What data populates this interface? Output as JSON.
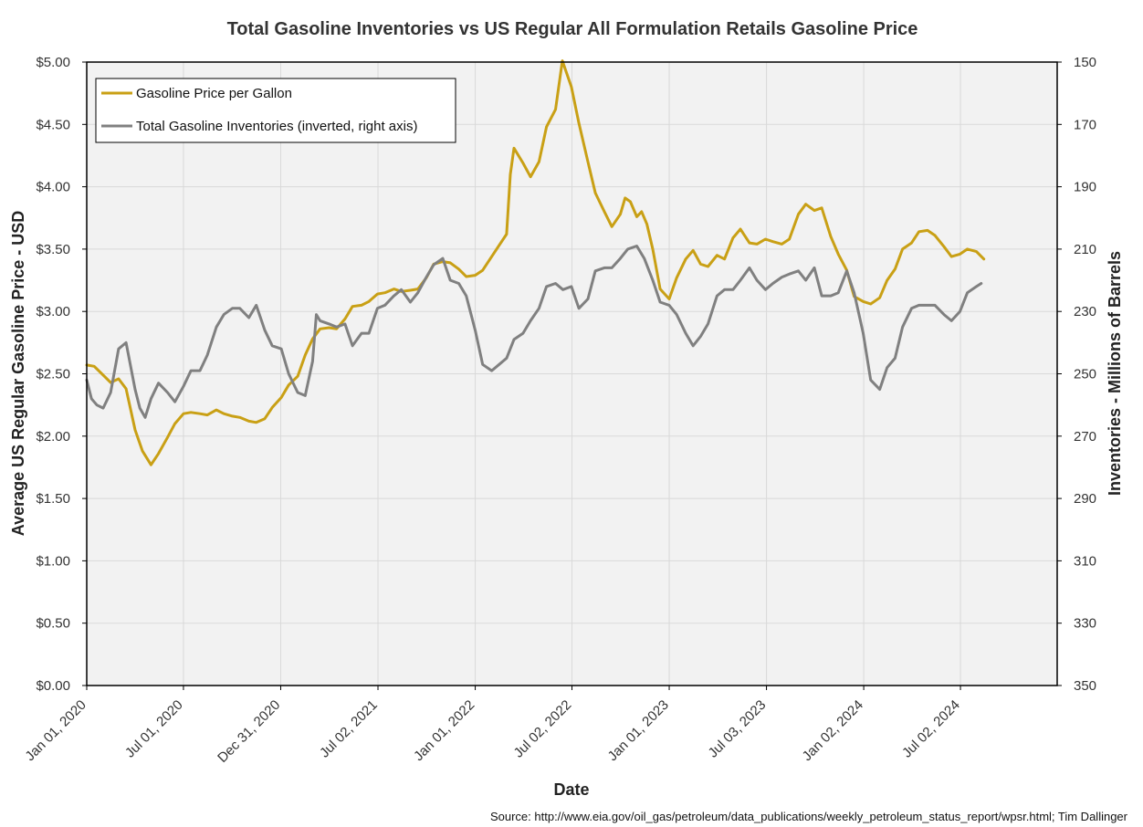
{
  "chart_data": {
    "type": "line",
    "title": "Total Gasoline Inventories vs US Regular All Formulation Retails Gasoline Price",
    "xlabel": "Date",
    "ylabel_left": "Average US Regular Gasoline Price - USD",
    "ylabel_right": "Inventories - Millions of Barrels",
    "source": "Source: http://www.eia.gov/oil_gas/petroleum/data_publications/weekly_petroleum_status_report/wpsr.html; Tim Dallinger",
    "x_range": [
      "2020-01-01",
      "2024-12-31"
    ],
    "x_ticks": [
      {
        "date": "2020-01-01",
        "label": "Jan 01, 2020"
      },
      {
        "date": "2020-07-01",
        "label": "Jul 01, 2020"
      },
      {
        "date": "2020-12-31",
        "label": "Dec 31, 2020"
      },
      {
        "date": "2021-07-02",
        "label": "Jul 02, 2021"
      },
      {
        "date": "2022-01-01",
        "label": "Jan 01, 2022"
      },
      {
        "date": "2022-07-02",
        "label": "Jul 02, 2022"
      },
      {
        "date": "2023-01-01",
        "label": "Jan 01, 2023"
      },
      {
        "date": "2023-07-03",
        "label": "Jul 03, 2023"
      },
      {
        "date": "2024-01-02",
        "label": "Jan 02, 2024"
      },
      {
        "date": "2024-07-02",
        "label": "Jul 02, 2024"
      }
    ],
    "y_left": {
      "min": 0,
      "max": 5,
      "step": 0.5,
      "tick_labels": [
        "$0.00",
        "$0.50",
        "$1.00",
        "$1.50",
        "$2.00",
        "$2.50",
        "$3.00",
        "$3.50",
        "$4.00",
        "$4.50",
        "$5.00"
      ]
    },
    "y_right": {
      "min": 150,
      "max": 350,
      "step": 20,
      "inverted": true,
      "tick_labels": [
        "150",
        "170",
        "190",
        "210",
        "230",
        "250",
        "270",
        "290",
        "310",
        "330",
        "350"
      ]
    },
    "grid": true,
    "legend_position": "top-left",
    "series": [
      {
        "name": "Gasoline Price per Gallon",
        "axis": "left",
        "color": "#C9A015",
        "points": [
          [
            "2020-01-01",
            2.57
          ],
          [
            "2020-01-15",
            2.56
          ],
          [
            "2020-02-01",
            2.49
          ],
          [
            "2020-02-15",
            2.43
          ],
          [
            "2020-03-01",
            2.46
          ],
          [
            "2020-03-15",
            2.38
          ],
          [
            "2020-04-01",
            2.05
          ],
          [
            "2020-04-15",
            1.88
          ],
          [
            "2020-05-01",
            1.77
          ],
          [
            "2020-05-15",
            1.86
          ],
          [
            "2020-06-01",
            1.99
          ],
          [
            "2020-06-15",
            2.1
          ],
          [
            "2020-07-01",
            2.18
          ],
          [
            "2020-07-15",
            2.19
          ],
          [
            "2020-08-01",
            2.18
          ],
          [
            "2020-08-15",
            2.17
          ],
          [
            "2020-09-01",
            2.21
          ],
          [
            "2020-09-15",
            2.18
          ],
          [
            "2020-10-01",
            2.16
          ],
          [
            "2020-10-15",
            2.15
          ],
          [
            "2020-11-01",
            2.12
          ],
          [
            "2020-11-15",
            2.11
          ],
          [
            "2020-12-01",
            2.14
          ],
          [
            "2020-12-15",
            2.23
          ],
          [
            "2021-01-01",
            2.31
          ],
          [
            "2021-01-15",
            2.41
          ],
          [
            "2021-02-01",
            2.48
          ],
          [
            "2021-02-15",
            2.65
          ],
          [
            "2021-03-01",
            2.78
          ],
          [
            "2021-03-15",
            2.86
          ],
          [
            "2021-04-01",
            2.87
          ],
          [
            "2021-04-15",
            2.86
          ],
          [
            "2021-05-01",
            2.94
          ],
          [
            "2021-05-15",
            3.04
          ],
          [
            "2021-06-01",
            3.05
          ],
          [
            "2021-06-15",
            3.08
          ],
          [
            "2021-07-01",
            3.14
          ],
          [
            "2021-07-15",
            3.15
          ],
          [
            "2021-08-01",
            3.18
          ],
          [
            "2021-08-15",
            3.16
          ],
          [
            "2021-09-01",
            3.17
          ],
          [
            "2021-09-15",
            3.18
          ],
          [
            "2021-10-01",
            3.27
          ],
          [
            "2021-10-15",
            3.38
          ],
          [
            "2021-11-01",
            3.4
          ],
          [
            "2021-11-15",
            3.39
          ],
          [
            "2021-12-01",
            3.34
          ],
          [
            "2021-12-15",
            3.28
          ],
          [
            "2022-01-01",
            3.29
          ],
          [
            "2022-01-15",
            3.33
          ],
          [
            "2022-02-01",
            3.44
          ],
          [
            "2022-02-15",
            3.53
          ],
          [
            "2022-03-01",
            3.62
          ],
          [
            "2022-03-08",
            4.1
          ],
          [
            "2022-03-15",
            4.31
          ],
          [
            "2022-04-01",
            4.19
          ],
          [
            "2022-04-15",
            4.08
          ],
          [
            "2022-05-01",
            4.2
          ],
          [
            "2022-05-15",
            4.48
          ],
          [
            "2022-06-01",
            4.62
          ],
          [
            "2022-06-14",
            5.01
          ],
          [
            "2022-07-01",
            4.8
          ],
          [
            "2022-07-15",
            4.51
          ],
          [
            "2022-08-01",
            4.2
          ],
          [
            "2022-08-15",
            3.95
          ],
          [
            "2022-09-01",
            3.8
          ],
          [
            "2022-09-15",
            3.68
          ],
          [
            "2022-10-01",
            3.78
          ],
          [
            "2022-10-10",
            3.91
          ],
          [
            "2022-10-20",
            3.88
          ],
          [
            "2022-11-01",
            3.76
          ],
          [
            "2022-11-10",
            3.8
          ],
          [
            "2022-11-20",
            3.7
          ],
          [
            "2022-12-01",
            3.5
          ],
          [
            "2022-12-15",
            3.18
          ],
          [
            "2023-01-01",
            3.1
          ],
          [
            "2023-01-15",
            3.27
          ],
          [
            "2023-02-01",
            3.42
          ],
          [
            "2023-02-15",
            3.49
          ],
          [
            "2023-03-01",
            3.38
          ],
          [
            "2023-03-15",
            3.36
          ],
          [
            "2023-04-01",
            3.45
          ],
          [
            "2023-04-15",
            3.42
          ],
          [
            "2023-05-01",
            3.59
          ],
          [
            "2023-05-15",
            3.66
          ],
          [
            "2023-06-01",
            3.55
          ],
          [
            "2023-06-15",
            3.54
          ],
          [
            "2023-07-01",
            3.58
          ],
          [
            "2023-07-15",
            3.56
          ],
          [
            "2023-08-01",
            3.54
          ],
          [
            "2023-08-15",
            3.58
          ],
          [
            "2023-09-01",
            3.78
          ],
          [
            "2023-09-15",
            3.86
          ],
          [
            "2023-10-01",
            3.81
          ],
          [
            "2023-10-15",
            3.83
          ],
          [
            "2023-11-01",
            3.6
          ],
          [
            "2023-11-15",
            3.46
          ],
          [
            "2023-12-01",
            3.33
          ],
          [
            "2023-12-15",
            3.12
          ],
          [
            "2024-01-01",
            3.08
          ],
          [
            "2024-01-15",
            3.06
          ],
          [
            "2024-02-01",
            3.11
          ],
          [
            "2024-02-15",
            3.25
          ],
          [
            "2024-03-01",
            3.34
          ],
          [
            "2024-03-15",
            3.5
          ],
          [
            "2024-04-01",
            3.55
          ],
          [
            "2024-04-15",
            3.64
          ],
          [
            "2024-05-01",
            3.65
          ],
          [
            "2024-05-15",
            3.61
          ],
          [
            "2024-06-01",
            3.52
          ],
          [
            "2024-06-15",
            3.44
          ],
          [
            "2024-07-01",
            3.46
          ],
          [
            "2024-07-15",
            3.5
          ],
          [
            "2024-08-01",
            3.48
          ],
          [
            "2024-08-15",
            3.42
          ]
        ]
      },
      {
        "name": "Total Gasoline Inventories (inverted, right axis)",
        "axis": "right",
        "color": "#808080",
        "points": [
          [
            "2020-01-01",
            252
          ],
          [
            "2020-01-10",
            258
          ],
          [
            "2020-01-20",
            260
          ],
          [
            "2020-02-01",
            261
          ],
          [
            "2020-02-15",
            256
          ],
          [
            "2020-03-01",
            242
          ],
          [
            "2020-03-15",
            240
          ],
          [
            "2020-04-01",
            255
          ],
          [
            "2020-04-10",
            261
          ],
          [
            "2020-04-20",
            264
          ],
          [
            "2020-05-01",
            258
          ],
          [
            "2020-05-15",
            253
          ],
          [
            "2020-06-01",
            256
          ],
          [
            "2020-06-15",
            259
          ],
          [
            "2020-07-01",
            254
          ],
          [
            "2020-07-15",
            249
          ],
          [
            "2020-08-01",
            249
          ],
          [
            "2020-08-15",
            244
          ],
          [
            "2020-09-01",
            235
          ],
          [
            "2020-09-15",
            231
          ],
          [
            "2020-10-01",
            229
          ],
          [
            "2020-10-15",
            229
          ],
          [
            "2020-11-01",
            232
          ],
          [
            "2020-11-15",
            228
          ],
          [
            "2020-12-01",
            236
          ],
          [
            "2020-12-15",
            241
          ],
          [
            "2021-01-01",
            242
          ],
          [
            "2021-01-15",
            250
          ],
          [
            "2021-02-01",
            256
          ],
          [
            "2021-02-15",
            257
          ],
          [
            "2021-03-01",
            246
          ],
          [
            "2021-03-08",
            231
          ],
          [
            "2021-03-15",
            233
          ],
          [
            "2021-04-01",
            234
          ],
          [
            "2021-04-15",
            235
          ],
          [
            "2021-05-01",
            234
          ],
          [
            "2021-05-15",
            241
          ],
          [
            "2021-06-01",
            237
          ],
          [
            "2021-06-15",
            237
          ],
          [
            "2021-07-01",
            229
          ],
          [
            "2021-07-15",
            228
          ],
          [
            "2021-08-01",
            225
          ],
          [
            "2021-08-15",
            223
          ],
          [
            "2021-09-01",
            227
          ],
          [
            "2021-09-15",
            224
          ],
          [
            "2021-10-01",
            219
          ],
          [
            "2021-10-15",
            215
          ],
          [
            "2021-11-01",
            213
          ],
          [
            "2021-11-15",
            220
          ],
          [
            "2021-12-01",
            221
          ],
          [
            "2021-12-15",
            225
          ],
          [
            "2022-01-01",
            236
          ],
          [
            "2022-01-15",
            247
          ],
          [
            "2022-02-01",
            249
          ],
          [
            "2022-02-15",
            247
          ],
          [
            "2022-03-01",
            245
          ],
          [
            "2022-03-15",
            239
          ],
          [
            "2022-04-01",
            237
          ],
          [
            "2022-04-15",
            233
          ],
          [
            "2022-05-01",
            229
          ],
          [
            "2022-05-15",
            222
          ],
          [
            "2022-06-01",
            221
          ],
          [
            "2022-06-15",
            223
          ],
          [
            "2022-07-01",
            222
          ],
          [
            "2022-07-15",
            229
          ],
          [
            "2022-08-01",
            226
          ],
          [
            "2022-08-15",
            217
          ],
          [
            "2022-09-01",
            216
          ],
          [
            "2022-09-15",
            216
          ],
          [
            "2022-10-01",
            213
          ],
          [
            "2022-10-15",
            210
          ],
          [
            "2022-11-01",
            209
          ],
          [
            "2022-11-15",
            213
          ],
          [
            "2022-12-01",
            220
          ],
          [
            "2022-12-15",
            227
          ],
          [
            "2023-01-01",
            228
          ],
          [
            "2023-01-15",
            231
          ],
          [
            "2023-02-01",
            237
          ],
          [
            "2023-02-15",
            241
          ],
          [
            "2023-03-01",
            238
          ],
          [
            "2023-03-15",
            234
          ],
          [
            "2023-04-01",
            225
          ],
          [
            "2023-04-15",
            223
          ],
          [
            "2023-05-01",
            223
          ],
          [
            "2023-05-15",
            220
          ],
          [
            "2023-06-01",
            216
          ],
          [
            "2023-06-15",
            220
          ],
          [
            "2023-07-01",
            223
          ],
          [
            "2023-07-15",
            221
          ],
          [
            "2023-08-01",
            219
          ],
          [
            "2023-08-15",
            218
          ],
          [
            "2023-09-01",
            217
          ],
          [
            "2023-09-15",
            220
          ],
          [
            "2023-10-01",
            216
          ],
          [
            "2023-10-15",
            225
          ],
          [
            "2023-11-01",
            225
          ],
          [
            "2023-11-15",
            224
          ],
          [
            "2023-12-01",
            217
          ],
          [
            "2023-12-15",
            224
          ],
          [
            "2024-01-01",
            237
          ],
          [
            "2024-01-15",
            252
          ],
          [
            "2024-02-01",
            255
          ],
          [
            "2024-02-15",
            248
          ],
          [
            "2024-03-01",
            245
          ],
          [
            "2024-03-15",
            235
          ],
          [
            "2024-04-01",
            229
          ],
          [
            "2024-04-15",
            228
          ],
          [
            "2024-05-01",
            228
          ],
          [
            "2024-05-15",
            228
          ],
          [
            "2024-06-01",
            231
          ],
          [
            "2024-06-15",
            233
          ],
          [
            "2024-07-01",
            230
          ],
          [
            "2024-07-15",
            224
          ],
          [
            "2024-08-01",
            222
          ],
          [
            "2024-08-10",
            221
          ]
        ]
      }
    ]
  }
}
